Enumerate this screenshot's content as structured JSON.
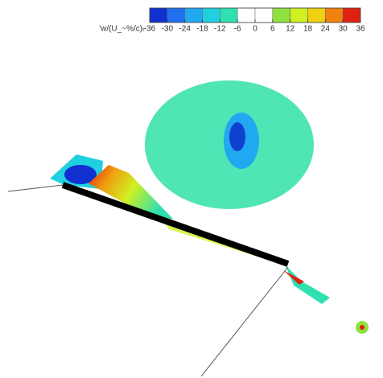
{
  "chart_data": {
    "type": "contour",
    "colorbar": {
      "label": "'w/(U_~%/c)ₜ",
      "lim": [
        -36,
        36
      ],
      "ticks": [
        -36,
        -30,
        -24,
        -18,
        -12,
        -6,
        0,
        6,
        12,
        18,
        24,
        30,
        36
      ],
      "colors": [
        "#1030d0",
        "#2070f0",
        "#20a8f0",
        "#20d0e0",
        "#30e0b0",
        "#ffffff",
        "#ffffff",
        "#90e040",
        "#d0f020",
        "#f0d010",
        "#f08010",
        "#e02010"
      ]
    }
  }
}
